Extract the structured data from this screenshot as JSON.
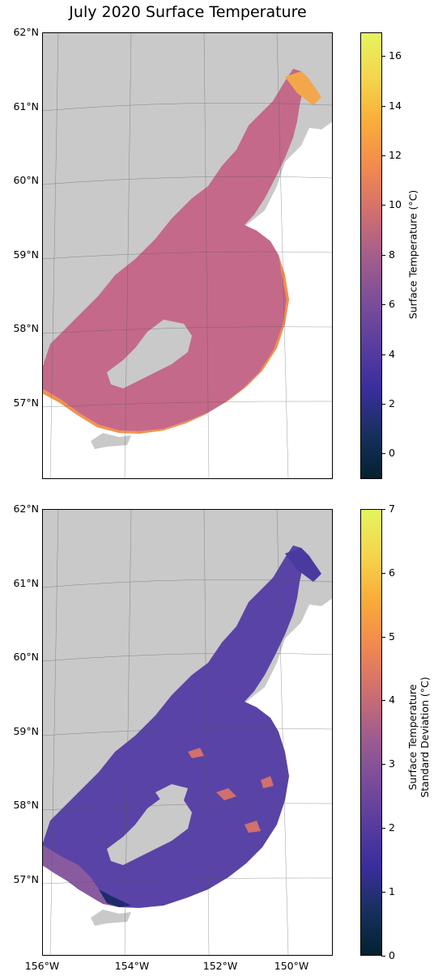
{
  "title": "July 2020 Surface Temperature",
  "top_panel": {
    "lat_labels": [
      "62°N",
      "61°N",
      "60°N",
      "59°N",
      "58°N",
      "57°N"
    ],
    "colorbar": {
      "label": "Surface Temperature (°C)",
      "ticks": [
        "16",
        "14",
        "12",
        "10",
        "8",
        "6",
        "4",
        "2",
        "0"
      ],
      "range": [
        -1,
        17
      ],
      "colormap": "thermal"
    }
  },
  "bottom_panel": {
    "lat_labels": [
      "62°N",
      "61°N",
      "60°N",
      "59°N",
      "58°N",
      "57°N"
    ],
    "lon_labels": [
      "156°W",
      "154°W",
      "152°W",
      "150°W"
    ],
    "colorbar": {
      "label_line1": "Surface Temperature",
      "label_line2": "Standard Deviation (°C)",
      "ticks": [
        "7",
        "6",
        "5",
        "4",
        "3",
        "2",
        "1",
        "0"
      ],
      "range": [
        0,
        7
      ],
      "colormap": "thermal"
    }
  },
  "colors": {
    "land": "#c9c9c9",
    "water_white": "#ffffff",
    "mean_ocean": "#c4698a",
    "mean_warm_edge": "#f2924c",
    "std_ocean": "#5a43a6",
    "std_dark": "#1d2c6a"
  }
}
